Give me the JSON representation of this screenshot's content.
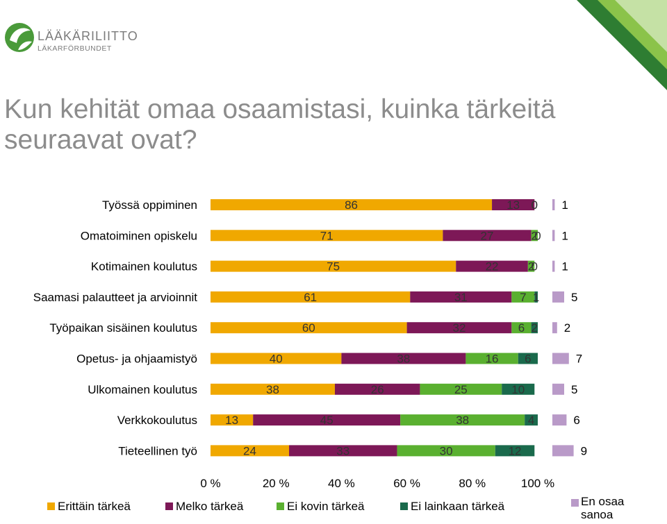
{
  "logo": {
    "name": "LÄÄKÄRILIITTO",
    "subname": "LÄKARFÖRBUNDET"
  },
  "title": "Kun kehität omaa osaamistasi, kuinka tärkeitä seuraavat ovat?",
  "colors": {
    "accent_green": "#6aaa2e",
    "corner_dark": "#2e7d32",
    "title_gray": "#8c8c8c"
  },
  "chart_data": {
    "type": "bar",
    "orientation": "horizontal",
    "stacked": true,
    "categories": [
      "Työssä oppiminen",
      "Omatoiminen opiskelu",
      "Kotimainen koulutus",
      "Saamasi palautteet ja arvioinnit",
      "Työpaikan sisäinen koulutus",
      "Opetus- ja ohjaamistyö",
      "Ulkomainen koulutus",
      "Verkkokoulutus",
      "Tieteellinen työ"
    ],
    "series": [
      {
        "name": "Erittäin tärkeä",
        "color": "#f0a800",
        "values": [
          86,
          71,
          75,
          61,
          60,
          40,
          38,
          13,
          24
        ]
      },
      {
        "name": "Melko tärkeä",
        "color": "#7d1857",
        "values": [
          13,
          27,
          22,
          31,
          32,
          38,
          26,
          45,
          33
        ]
      },
      {
        "name": "Ei kovin tärkeä",
        "color": "#5ab030",
        "values": [
          0,
          2,
          2,
          7,
          6,
          16,
          25,
          38,
          30
        ]
      },
      {
        "name": "Ei lainkaan tärkeä",
        "color": "#1a6a4c",
        "values": [
          0,
          0,
          0,
          1,
          2,
          6,
          10,
          4,
          12
        ]
      }
    ],
    "side_series": {
      "name": "En osaa sanoa",
      "color": "#b99ac8",
      "values": [
        1,
        1,
        1,
        5,
        2,
        7,
        5,
        6,
        9
      ]
    },
    "x_ticks": [
      "0 %",
      "20 %",
      "40 %",
      "60 %",
      "80 %",
      "100 %"
    ],
    "xlim": [
      0,
      100
    ],
    "grid": false,
    "legend_position": "bottom"
  }
}
